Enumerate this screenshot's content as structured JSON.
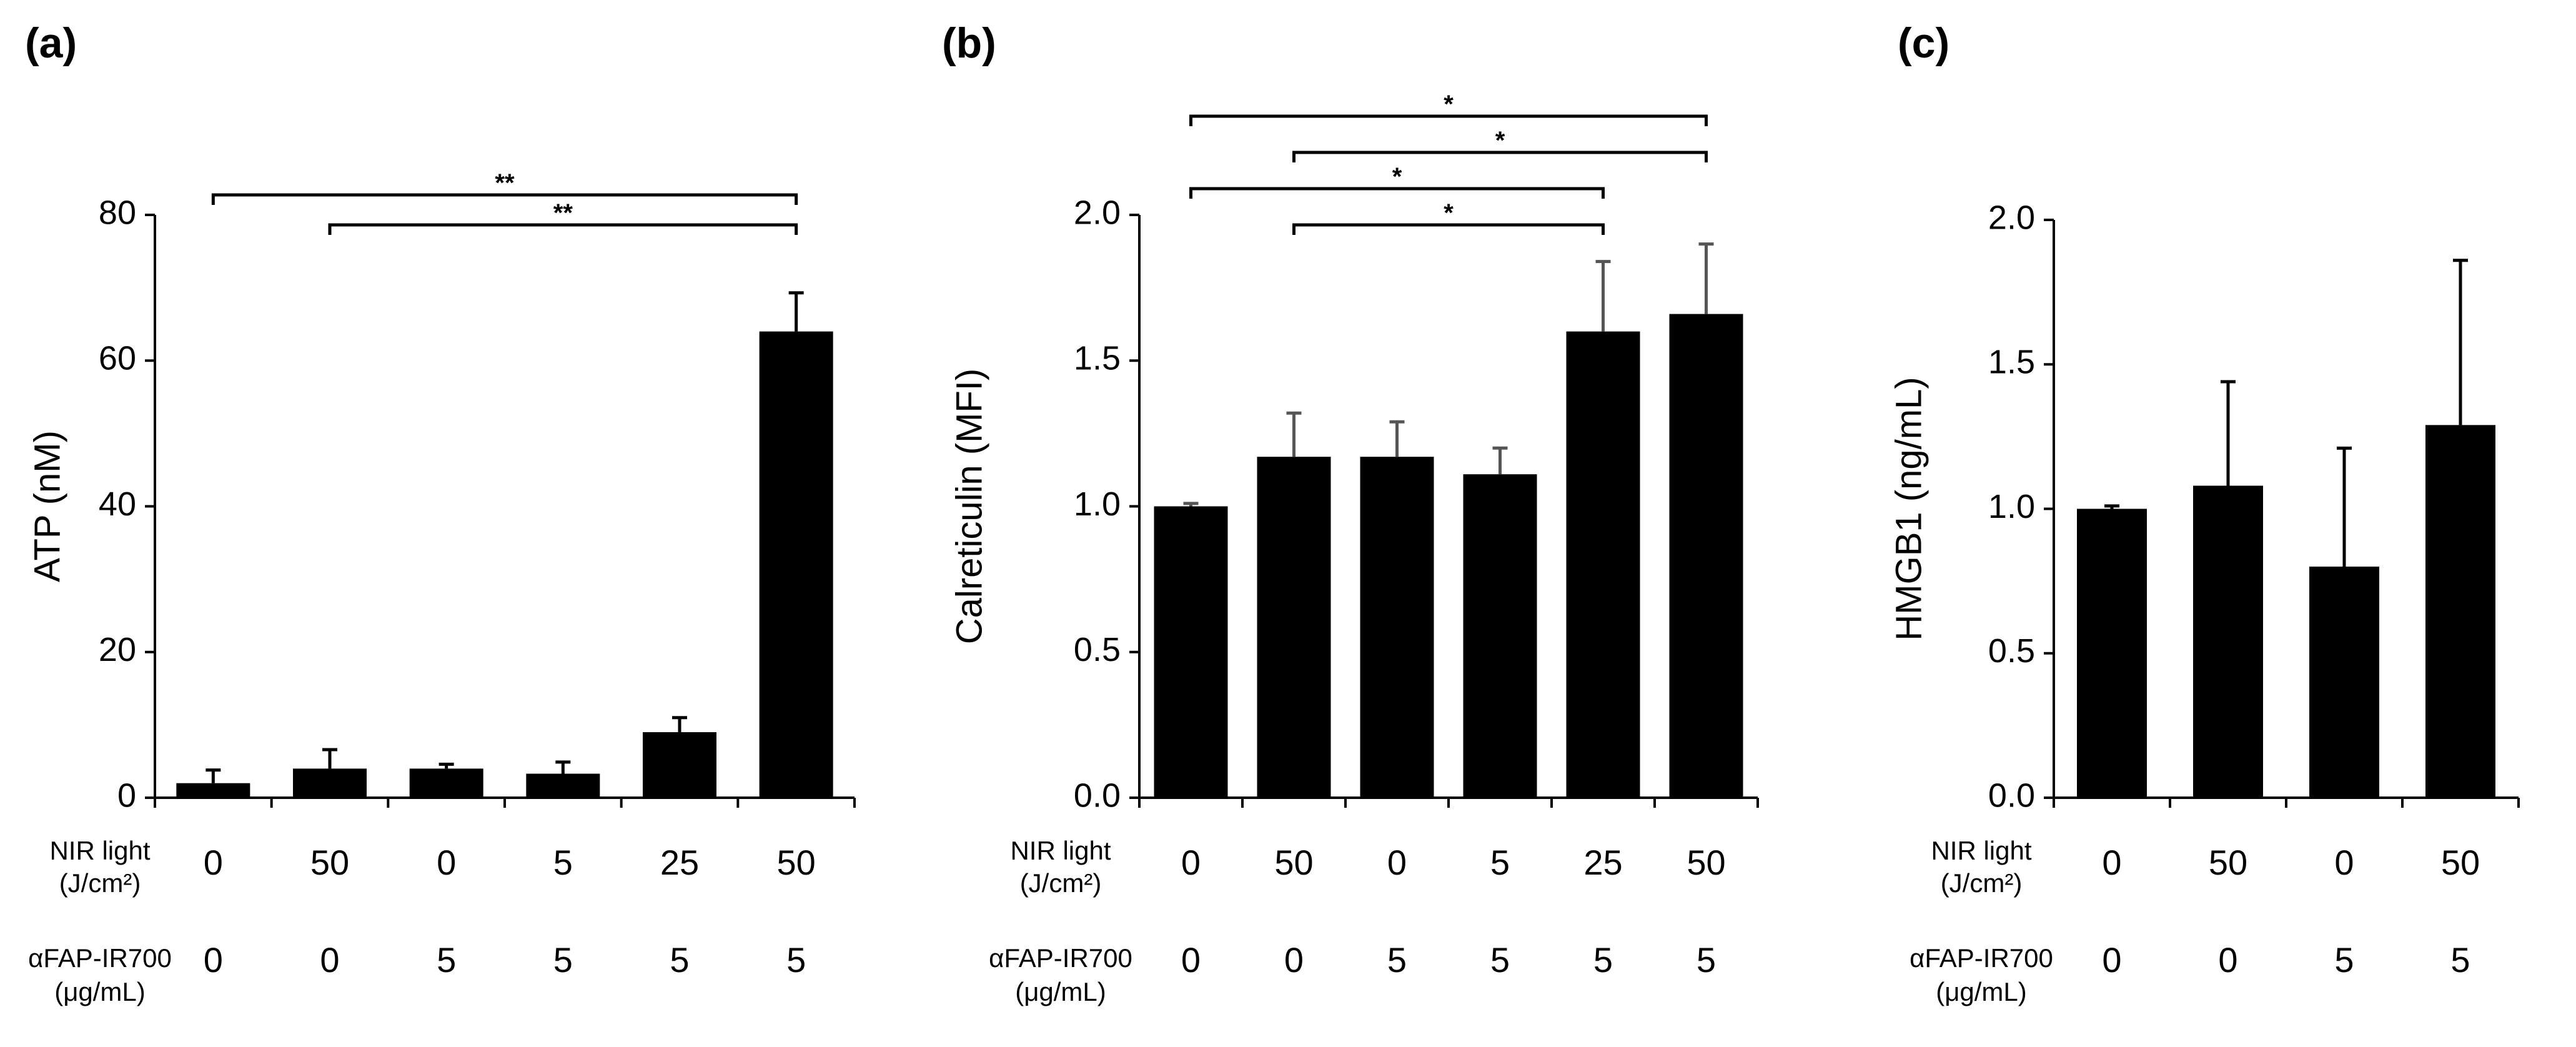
{
  "chart_data": [
    {
      "type": "bar",
      "panel_label": "(a)",
      "ylabel": "ATP (nM)",
      "ylim": [
        0,
        80
      ],
      "yticks": [
        "0",
        "20",
        "40",
        "60",
        "80"
      ],
      "ytick_values": [
        0,
        20,
        40,
        60,
        80
      ],
      "values": [
        2,
        4,
        4,
        3.3,
        9,
        64
      ],
      "errors": [
        1.8,
        2.6,
        0.6,
        1.6,
        2.0,
        5.3
      ],
      "row_labels": [
        {
          "line1": "NIR light",
          "line2": "(J/cm²)"
        },
        {
          "line1": "αFAP-IR700",
          "line2": "(μg/mL)"
        }
      ],
      "nir_light": [
        "0",
        "50",
        "0",
        "5",
        "25",
        "50"
      ],
      "afap_ir700": [
        "0",
        "0",
        "5",
        "5",
        "5",
        "5"
      ],
      "significance": [
        {
          "from": 0,
          "to": 5,
          "label": "**"
        },
        {
          "from": 1,
          "to": 5,
          "label": "**"
        }
      ],
      "error_color": "#000000"
    },
    {
      "type": "bar",
      "panel_label": "(b)",
      "ylabel": "Calreticulin (MFI)",
      "ylim": [
        0,
        2
      ],
      "yticks": [
        "0.0",
        "0.5",
        "1.0",
        "1.5",
        "2.0"
      ],
      "ytick_values": [
        0,
        0.5,
        1,
        1.5,
        2
      ],
      "values": [
        1.0,
        1.17,
        1.17,
        1.11,
        1.6,
        1.66
      ],
      "errors": [
        0.01,
        0.15,
        0.12,
        0.09,
        0.24,
        0.24
      ],
      "row_labels": [
        {
          "line1": "NIR light",
          "line2": "(J/cm²)"
        },
        {
          "line1": "αFAP-IR700",
          "line2": "(μg/mL)"
        }
      ],
      "nir_light": [
        "0",
        "50",
        "0",
        "5",
        "25",
        "50"
      ],
      "afap_ir700": [
        "0",
        "0",
        "5",
        "5",
        "5",
        "5"
      ],
      "significance": [
        {
          "from": 0,
          "to": 5,
          "label": "*"
        },
        {
          "from": 1,
          "to": 5,
          "label": "*"
        },
        {
          "from": 0,
          "to": 4,
          "label": "*"
        },
        {
          "from": 1,
          "to": 4,
          "label": "*"
        }
      ],
      "error_color": "#555555"
    },
    {
      "type": "bar",
      "panel_label": "(c)",
      "ylabel": "HMGB1 (ng/mL)",
      "ylim": [
        0,
        2
      ],
      "yticks": [
        "0.0",
        "0.5",
        "1.0",
        "1.5",
        "2.0"
      ],
      "ytick_values": [
        0,
        0.5,
        1,
        1.5,
        2
      ],
      "values": [
        1.0,
        1.08,
        0.8,
        1.29
      ],
      "errors": [
        0.01,
        0.36,
        0.41,
        0.57
      ],
      "row_labels": [
        {
          "line1": "NIR light",
          "line2": "(J/cm²)"
        },
        {
          "line1": "αFAP-IR700",
          "line2": "(μg/mL)"
        }
      ],
      "nir_light": [
        "0",
        "50",
        "0",
        "50"
      ],
      "afap_ir700": [
        "0",
        "0",
        "5",
        "5"
      ],
      "significance": [],
      "error_color": "#000000"
    }
  ]
}
